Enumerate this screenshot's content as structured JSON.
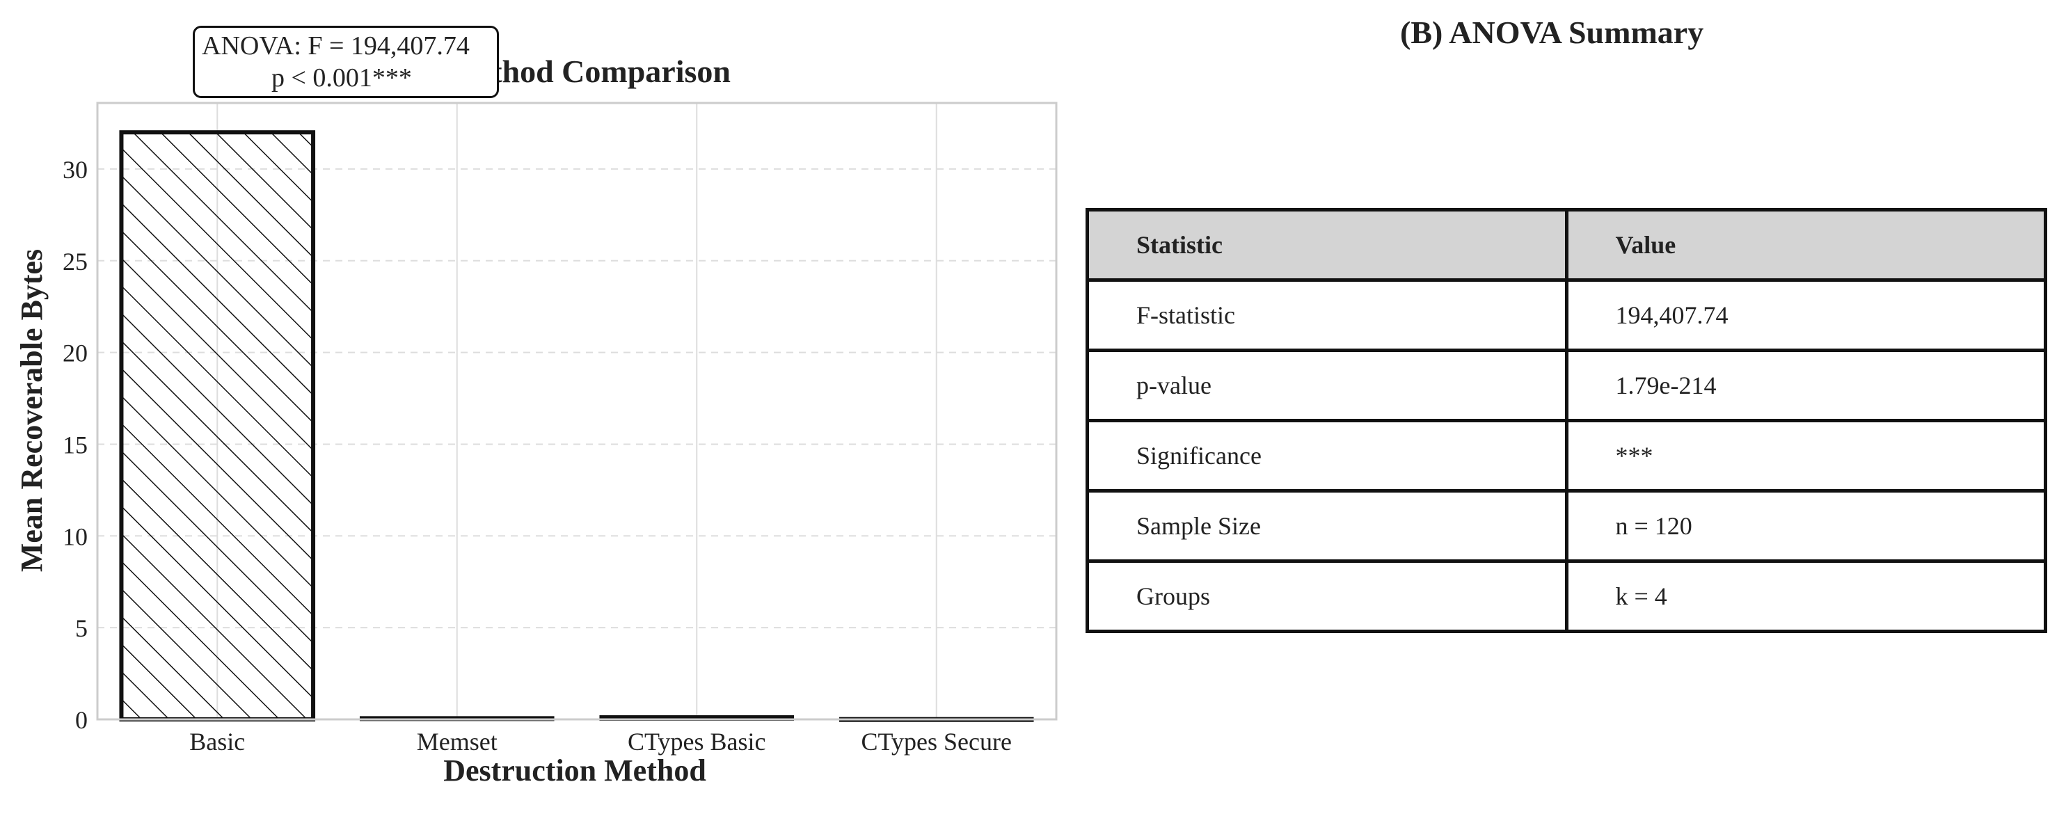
{
  "chart_data": [
    {
      "type": "bar",
      "title": "(A) Method Comparison",
      "xlabel": "Destruction Method",
      "ylabel": "Mean Recoverable Bytes",
      "categories": [
        "Basic",
        "Memset",
        "CTypes Basic",
        "CTypes Secure"
      ],
      "values": [
        32.0,
        0.1,
        0.15,
        0.05
      ],
      "ylim": [
        0,
        33.6
      ],
      "yticks": [
        0,
        5,
        10,
        15,
        20,
        25,
        30
      ],
      "grid": true,
      "highlight_pattern": "diagonal-hatch on Basic bar",
      "annotation": {
        "line1": "ANOVA: F = 194,407.74",
        "line2": "p < 0.001***"
      }
    },
    {
      "type": "table",
      "title": "(B) ANOVA Summary",
      "columns": [
        "Statistic",
        "Value"
      ],
      "rows": [
        [
          "F-statistic",
          "194,407.74"
        ],
        [
          "p-value",
          "1.79e-214"
        ],
        [
          "Significance",
          "***"
        ],
        [
          "Sample Size",
          "n = 120"
        ],
        [
          "Groups",
          "k = 4"
        ]
      ]
    }
  ],
  "colors": {
    "bar_edge": "#111111",
    "bar_fill": "#ffffff",
    "grid": "#dddddd",
    "axis_frame": "#cccccc",
    "table_header_bg": "#d4d4d4"
  }
}
